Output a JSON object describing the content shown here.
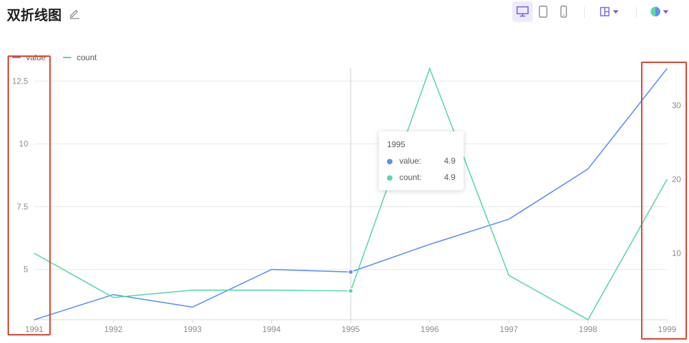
{
  "header": {
    "title": "双折线图"
  },
  "toolbar": {
    "accent": "#7b5bd6",
    "buttons": [
      {
        "icon": "desktop-icon",
        "active": true
      },
      {
        "icon": "tablet-icon",
        "active": false
      },
      {
        "icon": "mobile-icon",
        "active": false
      },
      {
        "icon": "layout-icon",
        "active": false
      },
      {
        "icon": "theme-icon",
        "active": false
      }
    ]
  },
  "tooltip": {
    "title": "1995",
    "rows": [
      {
        "name": "value:",
        "value": "4.9",
        "color": "#5b8ff9"
      },
      {
        "name": "count:",
        "value": "4.9",
        "color": "#5ad8a6"
      }
    ]
  },
  "chart_data": {
    "type": "line",
    "x": [
      "1991",
      "1992",
      "1993",
      "1994",
      "1995",
      "1996",
      "1997",
      "1998",
      "1999"
    ],
    "series": [
      {
        "name": "value",
        "axis": "left",
        "color": "#5b8ff9",
        "values": [
          3,
          4,
          3.5,
          5,
          4.9,
          6,
          7,
          9,
          13
        ]
      },
      {
        "name": "count",
        "axis": "right",
        "color": "#5ad8a6",
        "values": [
          10,
          4,
          5,
          5,
          4.9,
          35,
          7,
          1,
          20
        ]
      }
    ],
    "y_left": {
      "ticks": [
        "5",
        "7.5",
        "10",
        "12.5"
      ],
      "range": [
        3,
        13
      ]
    },
    "y_right": {
      "ticks": [
        "10",
        "20",
        "30"
      ],
      "range": [
        1,
        35
      ]
    },
    "legend": "top-left",
    "grid": true,
    "hover_category": "1995",
    "highlight_color": "#d9412f"
  }
}
